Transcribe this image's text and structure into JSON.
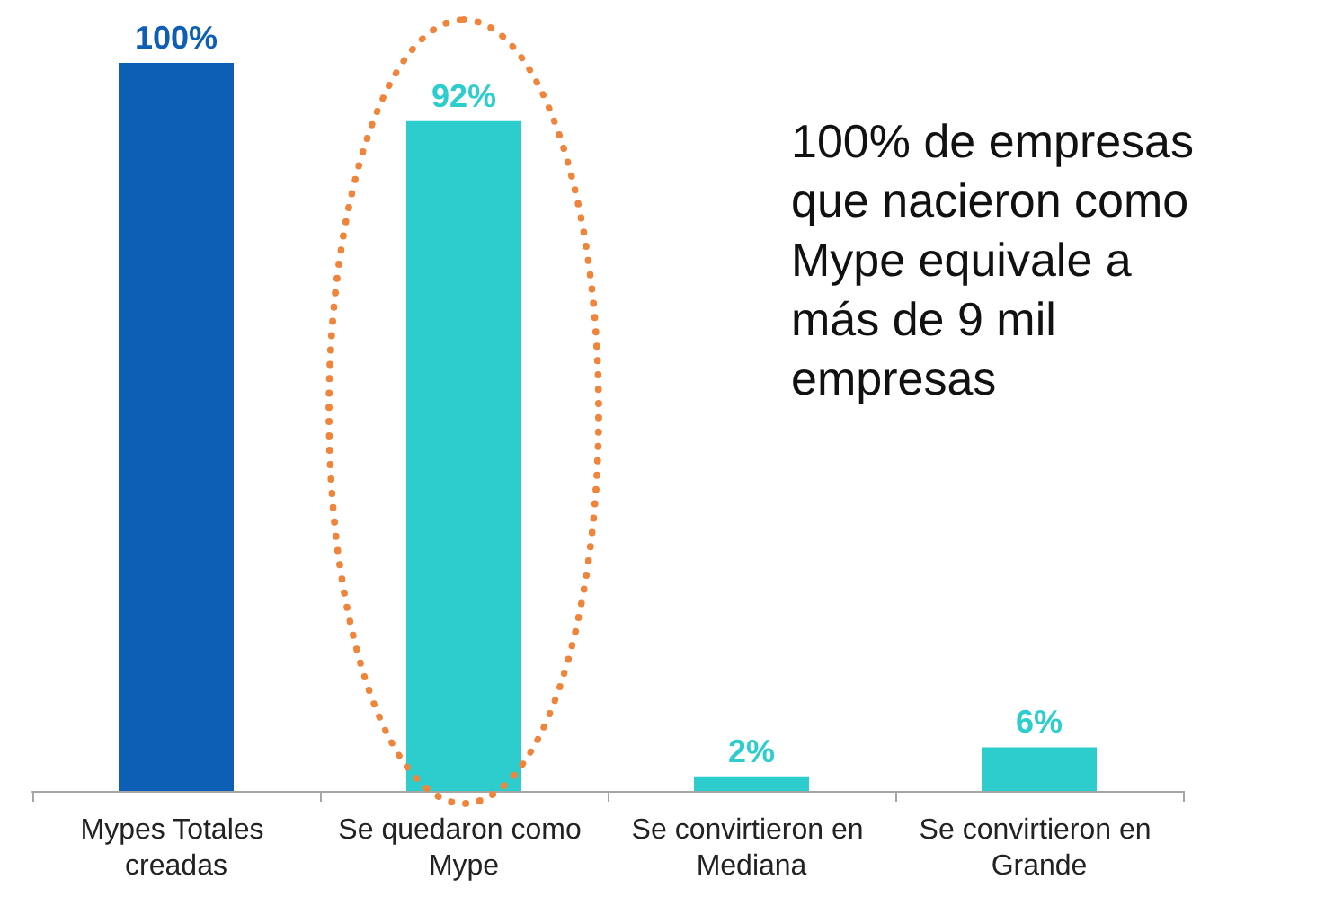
{
  "chart_data": {
    "type": "bar",
    "categories": [
      "Mypes Totales creadas",
      "Se quedaron como Mype",
      "Se convirtieron en Mediana",
      "Se convirtieron en Grande"
    ],
    "values": [
      100,
      92,
      2,
      6
    ],
    "colors": [
      "#0d5fb6",
      "#2ecdcd",
      "#2ecdcd",
      "#2ecdcd"
    ],
    "value_labels": [
      "100%",
      "92%",
      "2%",
      "6%"
    ],
    "annotations": [
      "100% de empresas que nacieron como Mype equivale a más de 9 mil empresas"
    ],
    "grid": false
  }
}
